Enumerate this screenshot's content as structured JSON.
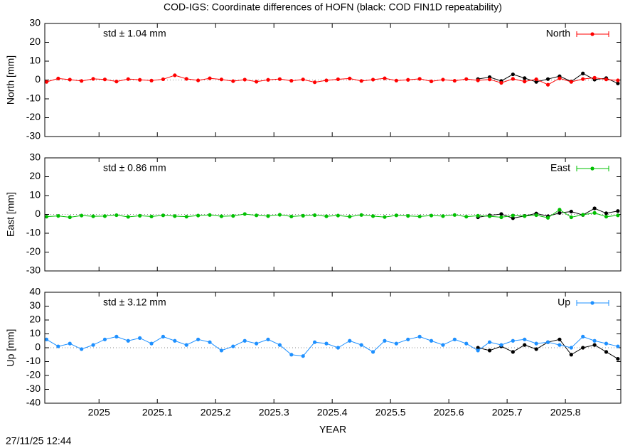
{
  "title": "COD-IGS: Coordinate differences of HOFN (black: COD FIN1D repeatability)",
  "timestamp": "27/11/25 12:44",
  "chart_data": [
    {
      "type": "line",
      "ylabel": "North [mm]",
      "annotation": "std ± 1.04 mm",
      "xlim": [
        2024.907,
        2025.895
      ],
      "xticks": [
        2025,
        2025.1,
        2025.2,
        2025.3,
        2025.4,
        2025.5,
        2025.6,
        2025.7,
        2025.8
      ],
      "ylim": [
        -30,
        30
      ],
      "yticks": [
        30,
        20,
        10,
        0,
        -10,
        -20,
        -30
      ],
      "series": [
        {
          "name": "North",
          "color": "#ff0000",
          "x": [
            2024.91,
            2024.93,
            2024.95,
            2024.97,
            2024.99,
            2025.01,
            2025.03,
            2025.05,
            2025.07,
            2025.09,
            2025.11,
            2025.13,
            2025.15,
            2025.17,
            2025.19,
            2025.21,
            2025.23,
            2025.25,
            2025.27,
            2025.29,
            2025.31,
            2025.33,
            2025.35,
            2025.37,
            2025.39,
            2025.41,
            2025.43,
            2025.45,
            2025.47,
            2025.49,
            2025.51,
            2025.53,
            2025.55,
            2025.57,
            2025.59,
            2025.61,
            2025.63,
            2025.65,
            2025.67,
            2025.69,
            2025.71,
            2025.73,
            2025.75,
            2025.77,
            2025.79,
            2025.81,
            2025.83,
            2025.85,
            2025.87,
            2025.89
          ],
          "values": [
            -1,
            0.8,
            0.2,
            -0.5,
            0.6,
            0.3,
            -0.8,
            0.5,
            0.1,
            -0.3,
            0.4,
            2.5,
            0.6,
            -0.2,
            0.9,
            0.3,
            -0.6,
            0.2,
            -0.9,
            0.1,
            0.5,
            -0.4,
            0.3,
            -1.2,
            -0.2,
            0.4,
            0.8,
            -0.5,
            0.2,
            0.9,
            -0.3,
            0.1,
            0.6,
            -0.7,
            0.2,
            -0.4,
            0.5,
            -0.2,
            0.3,
            -1.5,
            0.6,
            -0.8,
            0.4,
            -2.5,
            0.9,
            -1,
            0.5,
            1.2,
            0.3,
            -0.2
          ]
        },
        {
          "color": "#000000",
          "x": [
            2025.65,
            2025.67,
            2025.69,
            2025.71,
            2025.73,
            2025.75,
            2025.77,
            2025.79,
            2025.81,
            2025.83,
            2025.85,
            2025.87,
            2025.89
          ],
          "values": [
            0.5,
            1.5,
            -0.5,
            3,
            1,
            -1,
            0.5,
            2,
            -0.8,
            3.5,
            0.2,
            1,
            -1.8
          ]
        }
      ]
    },
    {
      "type": "line",
      "ylabel": "East [mm]",
      "annotation": "std ± 0.86 mm",
      "xlim": [
        2024.907,
        2025.895
      ],
      "xticks": [
        2025,
        2025.1,
        2025.2,
        2025.3,
        2025.4,
        2025.5,
        2025.6,
        2025.7,
        2025.8
      ],
      "ylim": [
        -30,
        30
      ],
      "yticks": [
        30,
        20,
        10,
        0,
        -10,
        -20,
        -30
      ],
      "series": [
        {
          "name": "East",
          "color": "#00c000",
          "x": [
            2024.91,
            2024.93,
            2024.95,
            2024.97,
            2024.99,
            2025.01,
            2025.03,
            2025.05,
            2025.07,
            2025.09,
            2025.11,
            2025.13,
            2025.15,
            2025.17,
            2025.19,
            2025.21,
            2025.23,
            2025.25,
            2025.27,
            2025.29,
            2025.31,
            2025.33,
            2025.35,
            2025.37,
            2025.39,
            2025.41,
            2025.43,
            2025.45,
            2025.47,
            2025.49,
            2025.51,
            2025.53,
            2025.55,
            2025.57,
            2025.59,
            2025.61,
            2025.63,
            2025.65,
            2025.67,
            2025.69,
            2025.71,
            2025.73,
            2025.75,
            2025.77,
            2025.79,
            2025.81,
            2025.83,
            2025.85,
            2025.87,
            2025.89
          ],
          "values": [
            -1.2,
            -0.8,
            -1.5,
            -0.6,
            -1,
            -0.9,
            -0.4,
            -1.3,
            -0.7,
            -1.1,
            -0.5,
            -0.9,
            -1.2,
            -0.6,
            -0.3,
            -1,
            -0.8,
            0.2,
            -0.5,
            -0.9,
            -0.2,
            -1.1,
            -0.7,
            -0.4,
            -1,
            -0.6,
            -1.2,
            -0.3,
            -0.9,
            -1.4,
            -0.5,
            -0.8,
            -1.1,
            -0.6,
            -0.9,
            -0.3,
            -1.2,
            -0.7,
            -1,
            -1.5,
            -0.6,
            -0.9,
            -0.4,
            -1.8,
            2.5,
            -1.5,
            -0.2,
            0.8,
            -1.2,
            -0.5
          ]
        },
        {
          "color": "#000000",
          "x": [
            2025.65,
            2025.67,
            2025.69,
            2025.71,
            2025.73,
            2025.75,
            2025.77,
            2025.79,
            2025.81,
            2025.83,
            2025.85,
            2025.87,
            2025.89
          ],
          "values": [
            -1.5,
            -0.5,
            0.2,
            -2,
            -0.8,
            0.5,
            -1,
            0.8,
            1.5,
            -0.3,
            3.2,
            0.6,
            1.8
          ]
        }
      ]
    },
    {
      "type": "line",
      "ylabel": "Up [mm]",
      "annotation": "std ± 3.12 mm",
      "xlabel": "YEAR",
      "xlim": [
        2024.907,
        2025.895
      ],
      "xticks": [
        2025,
        2025.1,
        2025.2,
        2025.3,
        2025.4,
        2025.5,
        2025.6,
        2025.7,
        2025.8
      ],
      "ylim": [
        -40,
        40
      ],
      "yticks": [
        40,
        30,
        20,
        10,
        0,
        -10,
        -20,
        -30,
        -40
      ],
      "series": [
        {
          "name": "Up",
          "color": "#1e90ff",
          "x": [
            2024.91,
            2024.93,
            2024.95,
            2024.97,
            2024.99,
            2025.01,
            2025.03,
            2025.05,
            2025.07,
            2025.09,
            2025.11,
            2025.13,
            2025.15,
            2025.17,
            2025.19,
            2025.21,
            2025.23,
            2025.25,
            2025.27,
            2025.29,
            2025.31,
            2025.33,
            2025.35,
            2025.37,
            2025.39,
            2025.41,
            2025.43,
            2025.45,
            2025.47,
            2025.49,
            2025.51,
            2025.53,
            2025.55,
            2025.57,
            2025.59,
            2025.61,
            2025.63,
            2025.65,
            2025.67,
            2025.69,
            2025.71,
            2025.73,
            2025.75,
            2025.77,
            2025.79,
            2025.81,
            2025.83,
            2025.85,
            2025.87,
            2025.89
          ],
          "values": [
            6,
            1,
            3,
            -1,
            2,
            6,
            8,
            5,
            7,
            3,
            8,
            5,
            2,
            6,
            4,
            -2,
            1,
            5,
            3,
            6,
            2,
            -5,
            -6,
            4,
            3,
            0,
            5,
            2,
            -3,
            5,
            3,
            6,
            8,
            5,
            2,
            6,
            3,
            -2,
            4,
            2,
            5,
            6,
            3,
            4,
            2,
            0,
            8,
            5,
            3,
            1
          ]
        },
        {
          "color": "#000000",
          "x": [
            2025.65,
            2025.67,
            2025.69,
            2025.71,
            2025.73,
            2025.75,
            2025.77,
            2025.79,
            2025.81,
            2025.83,
            2025.85,
            2025.87,
            2025.89
          ],
          "values": [
            0,
            -2,
            1,
            -3,
            2,
            -1,
            4,
            6,
            -5,
            0,
            2,
            -3,
            -8
          ]
        }
      ]
    }
  ]
}
